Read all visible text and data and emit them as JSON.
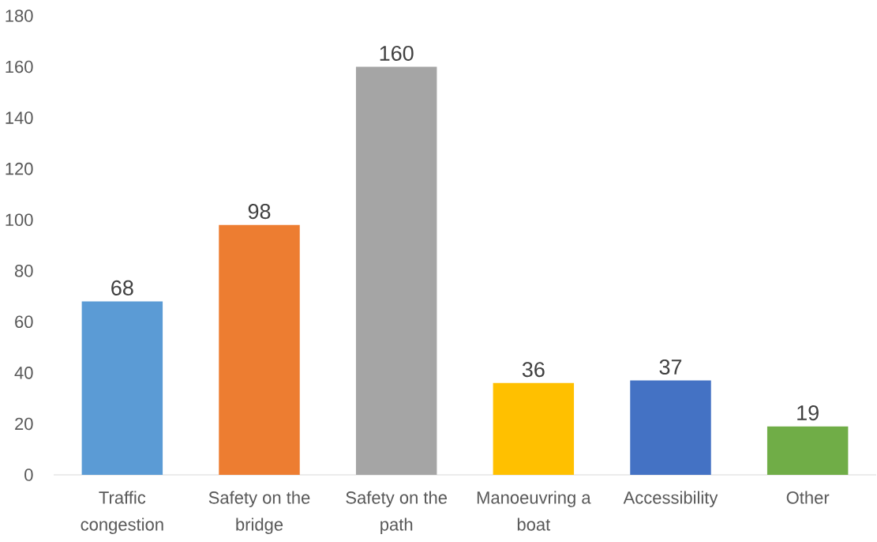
{
  "chart_data": {
    "type": "bar",
    "categories": [
      "Traffic congestion",
      "Safety on the bridge",
      "Safety on the path",
      "Manoeuvring a boat",
      "Accessibility",
      "Other"
    ],
    "values": [
      68,
      98,
      160,
      36,
      37,
      19
    ],
    "colors": [
      "#5b9bd5",
      "#ed7d31",
      "#a5a5a5",
      "#ffc000",
      "#4472c4",
      "#70ad47"
    ],
    "ylim": [
      0,
      180
    ],
    "yticks": [
      0,
      20,
      40,
      60,
      80,
      100,
      120,
      140,
      160,
      180
    ],
    "data_labels": true
  }
}
